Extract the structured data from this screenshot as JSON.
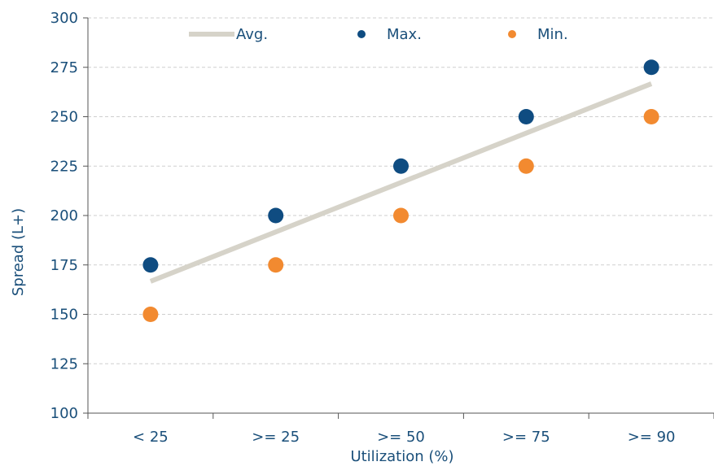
{
  "chart_data": {
    "type": "scatter",
    "title": "",
    "xlabel": "Utilization (%)",
    "ylabel": "Spread (L+)",
    "categories": [
      "< 25",
      ">= 25",
      ">= 50",
      ">= 75",
      ">= 90"
    ],
    "ylim": [
      100,
      300
    ],
    "yticks": [
      100,
      125,
      150,
      175,
      200,
      225,
      250,
      275,
      300
    ],
    "grid": true,
    "legend_position": "top",
    "series": [
      {
        "name": "Avg.",
        "kind": "line",
        "color": "#d6d3c9",
        "values": [
          166.7,
          191.7,
          216.7,
          241.7,
          266.7
        ]
      },
      {
        "name": "Max.",
        "kind": "scatter",
        "color": "#0f4c81",
        "values": [
          175,
          200,
          225,
          250,
          275
        ]
      },
      {
        "name": "Min.",
        "kind": "scatter",
        "color": "#f28a30",
        "values": [
          150,
          175,
          200,
          225,
          250
        ]
      }
    ],
    "colors": {
      "text": "#1a4f7a",
      "axis": "#555555",
      "grid": "#cfcfcf"
    }
  }
}
